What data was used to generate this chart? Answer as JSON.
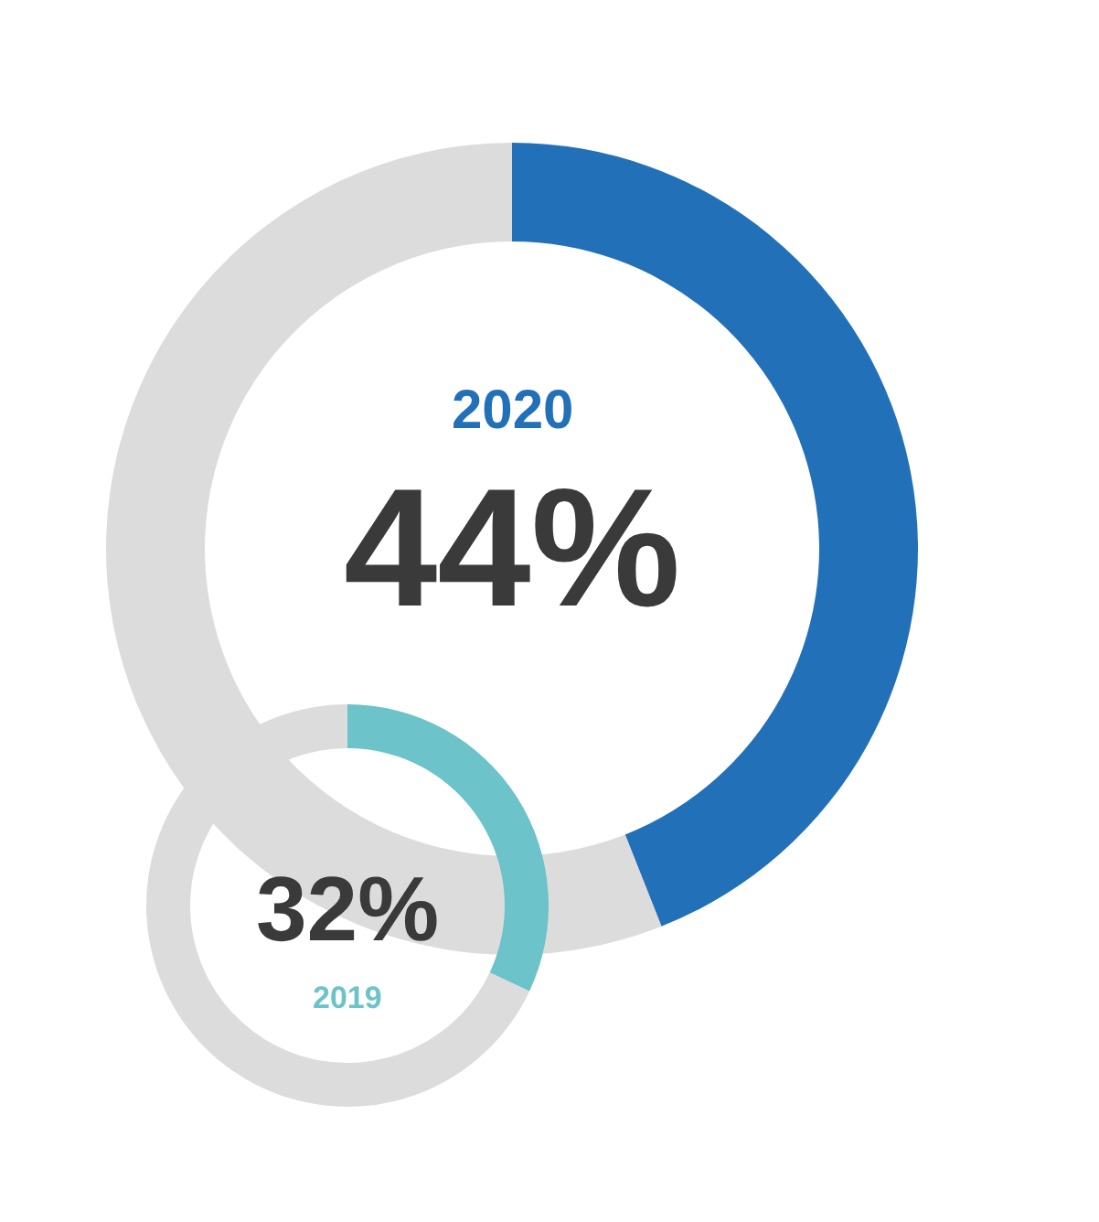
{
  "chart_data": [
    {
      "type": "donut",
      "title": "2020",
      "categories": [
        null,
        null
      ],
      "values": [
        44,
        56
      ],
      "colors": [
        "#2271b8",
        "#dcdcdc"
      ],
      "annotations": [
        "44%"
      ]
    },
    {
      "type": "donut",
      "title": "2019",
      "categories": [
        null,
        null
      ],
      "values": [
        32,
        68
      ],
      "colors": [
        "#6cc3c9",
        "#dcdcdc"
      ],
      "annotations": [
        "32%"
      ]
    }
  ]
}
